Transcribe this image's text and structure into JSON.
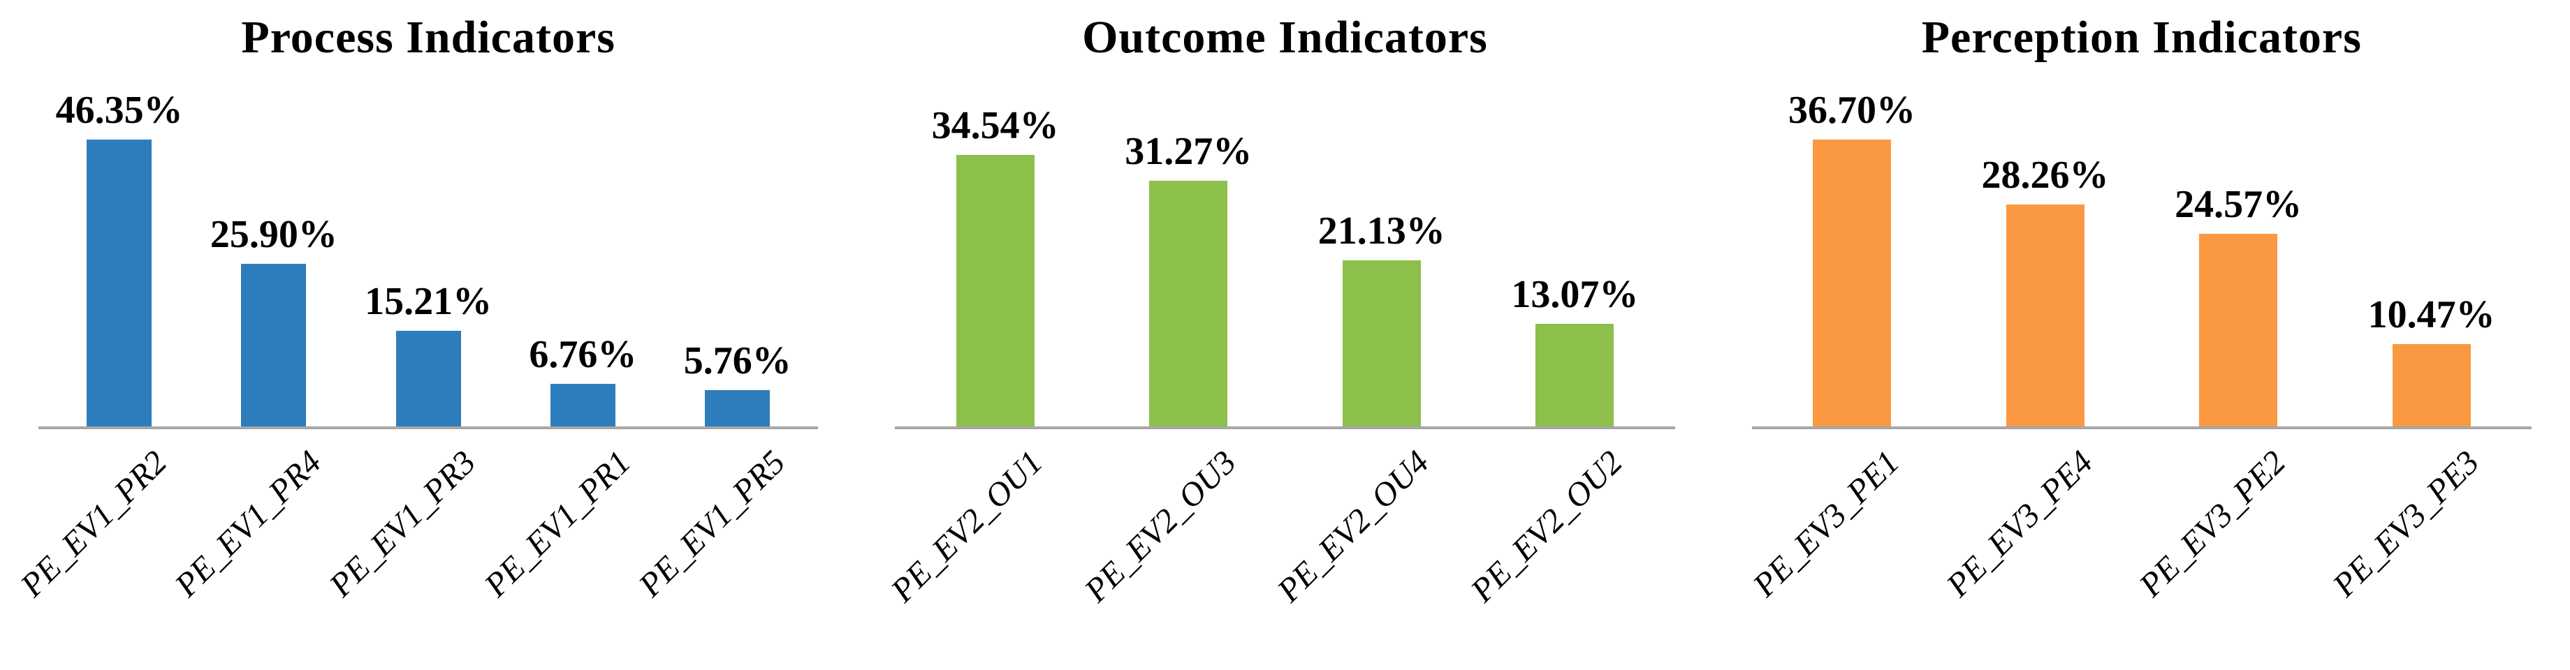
{
  "page": {
    "background": "#ffffff",
    "text_color": "#000000",
    "axis_color": "#a6a6a6"
  },
  "chart_data": [
    {
      "type": "bar",
      "title": "Process Indicators",
      "categories": [
        "PE_EV1_PR2",
        "PE_EV1_PR4",
        "PE_EV1_PR3",
        "PE_EV1_PR1",
        "PE_EV1_PR5"
      ],
      "values": [
        46.35,
        25.9,
        15.21,
        6.76,
        5.76
      ],
      "value_labels": [
        "46.35%",
        "25.90%",
        "15.21%",
        "6.76%",
        "5.76%"
      ],
      "bar_color": "#2d7dbc",
      "xlabel": "",
      "ylabel": "",
      "ylim": [
        0,
        50
      ],
      "grid": false,
      "legend": "none",
      "value_label_position": "above-bar",
      "tick_label_rotation_deg": 45,
      "tick_label_style": "italic"
    },
    {
      "type": "bar",
      "title": "Outcome Indicators",
      "categories": [
        "PE_EV2_OU1",
        "PE_EV2_OU3",
        "PE_EV2_OU4",
        "PE_EV2_OU2"
      ],
      "values": [
        34.54,
        31.27,
        21.13,
        13.07
      ],
      "value_labels": [
        "34.54%",
        "31.27%",
        "21.13%",
        "13.07%"
      ],
      "bar_color": "#8cc04b",
      "xlabel": "",
      "ylabel": "",
      "ylim": [
        0,
        40
      ],
      "grid": false,
      "legend": "none",
      "value_label_position": "above-bar",
      "tick_label_rotation_deg": 45,
      "tick_label_style": "italic"
    },
    {
      "type": "bar",
      "title": "Perception Indicators",
      "categories": [
        "PE_EV3_PE1",
        "PE_EV3_PE4",
        "PE_EV3_PE2",
        "PE_EV3_PE3"
      ],
      "values": [
        36.7,
        28.26,
        24.57,
        10.47
      ],
      "value_labels": [
        "36.70%",
        "28.26%",
        "24.57%",
        "10.47%"
      ],
      "bar_color": "#fb9842",
      "xlabel": "",
      "ylabel": "",
      "ylim": [
        0,
        40
      ],
      "grid": false,
      "legend": "none",
      "value_label_position": "above-bar",
      "tick_label_rotation_deg": 45,
      "tick_label_style": "italic"
    }
  ]
}
